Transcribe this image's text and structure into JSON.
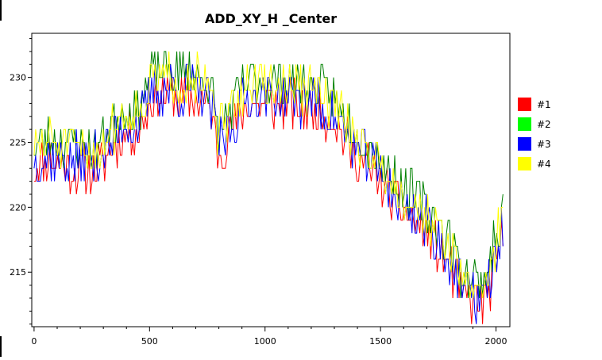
{
  "chart_data": {
    "type": "line",
    "title": "ADD_XY_H _Center",
    "xlabel": "",
    "ylabel": "",
    "xlim": [
      -10,
      2060
    ],
    "ylim": [
      210.8,
      233.4
    ],
    "x_ticks": [
      0,
      500,
      1000,
      1500,
      2000
    ],
    "y_ticks": [
      215,
      220,
      225,
      230
    ],
    "grid": false,
    "legend_position": "right",
    "trend": {
      "x": [
        0,
        60,
        150,
        250,
        300,
        380,
        450,
        520,
        600,
        700,
        760,
        800,
        850,
        930,
        1000,
        1100,
        1200,
        1300,
        1380,
        1450,
        1500,
        1560,
        1650,
        1720,
        1800,
        1850,
        1900,
        1950,
        2000,
        2030
      ],
      "y": [
        224,
        224.5,
        224,
        223.7,
        224.5,
        226.5,
        226.8,
        229.5,
        229.5,
        229.3,
        228.5,
        225,
        226.5,
        229,
        228.8,
        228.8,
        228.5,
        227.5,
        225,
        224,
        222.8,
        221.3,
        219.8,
        218.5,
        216.5,
        214,
        213.5,
        213.5,
        216.5,
        219
      ]
    },
    "series": [
      {
        "name": "#1",
        "color": "#ff0000",
        "offset": -0.9,
        "noise": 1.8,
        "seed": 11
      },
      {
        "name": "#2",
        "color": "#00ff00",
        "line_color": "#008000",
        "offset": 0.9,
        "noise": 1.8,
        "seed": 23
      },
      {
        "name": "#3",
        "color": "#0000ff",
        "offset": -0.3,
        "noise": 2.0,
        "seed": 37
      },
      {
        "name": "#4",
        "color": "#ffff00",
        "offset": 0.5,
        "noise": 1.8,
        "seed": 51
      }
    ]
  }
}
